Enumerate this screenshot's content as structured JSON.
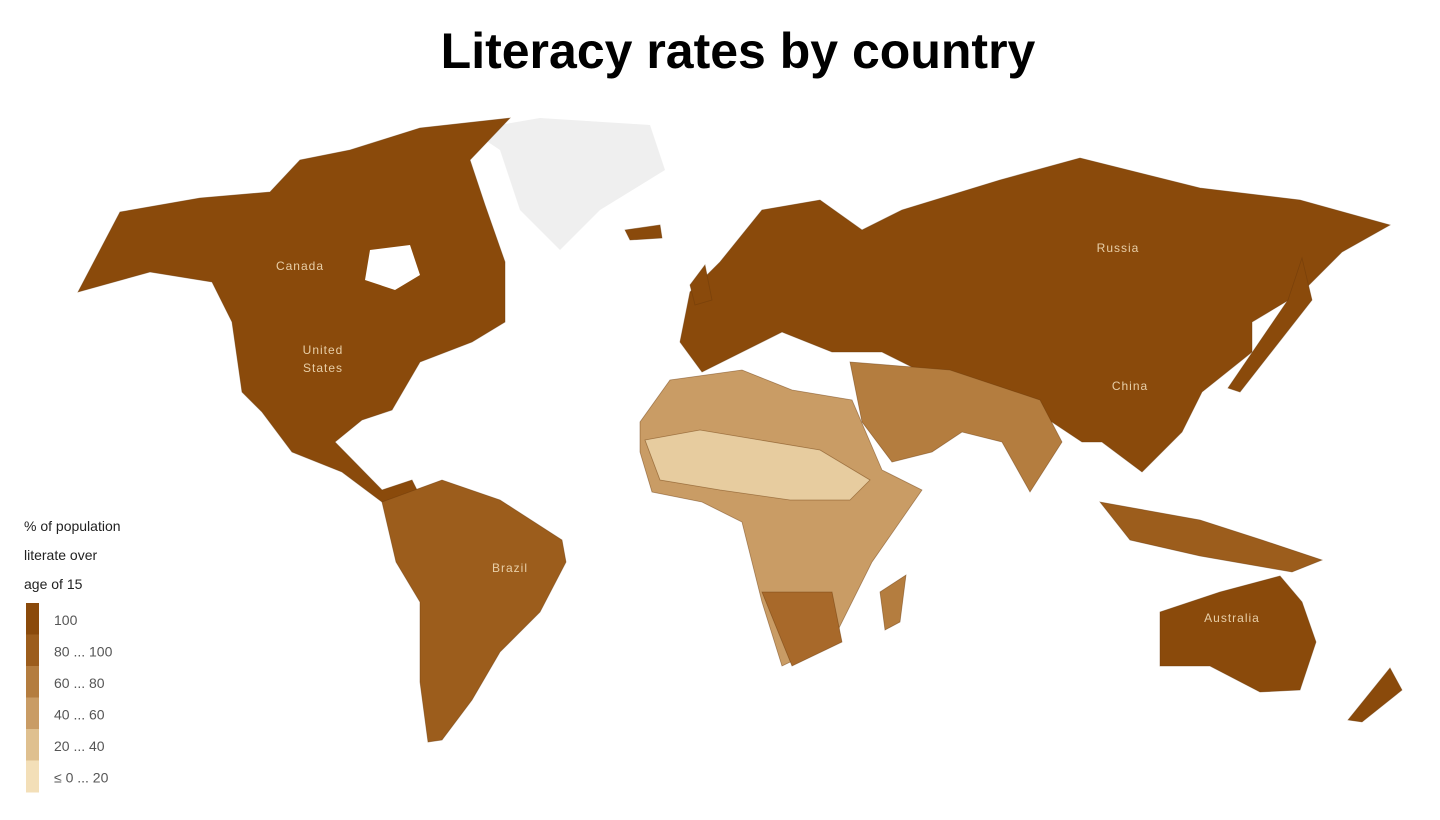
{
  "title": "Literacy rates by country",
  "labels": [
    {
      "lines": [
        "Canada"
      ]
    },
    {
      "lines": [
        "United",
        "States"
      ]
    },
    {
      "lines": [
        "Brazil"
      ]
    },
    {
      "lines": [
        "Russia"
      ]
    },
    {
      "lines": [
        "China"
      ]
    },
    {
      "lines": [
        "Australia"
      ]
    }
  ],
  "legend": {
    "title": [
      "% of population",
      "literate over",
      "age of 15"
    ],
    "items": [
      {
        "label": "100",
        "color": "#8a4a0b"
      },
      {
        "label": "80 ... 100",
        "color": "#9c5d1c"
      },
      {
        "label": "60 ... 80",
        "color": "#b47d3f"
      },
      {
        "label": "40 ... 60",
        "color": "#c99c65"
      },
      {
        "label": "20 ... 40",
        "color": "#dfc08f"
      },
      {
        "label": "≤ 0 ... 20",
        "color": "#f3dfb8"
      }
    ]
  }
}
